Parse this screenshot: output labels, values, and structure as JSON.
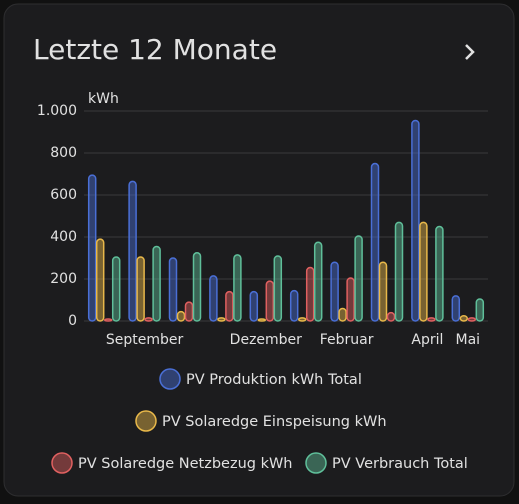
{
  "chart_data": {
    "type": "bar",
    "title": "Letzte 12 Monate",
    "y_label": "kWh",
    "categories": [
      null,
      "September",
      null,
      null,
      "Dezember",
      null,
      "Februar",
      null,
      "April",
      "Mai"
    ],
    "series": [
      {
        "name": "PV Produktion kWh Total",
        "color": "#4a6fd6",
        "values": [
          690,
          660,
          295,
          210,
          135,
          140,
          275,
          745,
          950,
          115
        ]
      },
      {
        "name": "PV Solaredge Einspeisung kWh",
        "color": "#e8b84a",
        "values": [
          385,
          300,
          40,
          10,
          5,
          10,
          55,
          275,
          465,
          20
        ]
      },
      {
        "name": "PV Solaredge Netzbezug kWh",
        "color": "#e06060",
        "values": [
          5,
          10,
          85,
          135,
          185,
          250,
          200,
          35,
          10,
          10
        ]
      },
      {
        "name": "PV Verbrauch Total",
        "color": "#5fbf9a",
        "values": [
          300,
          350,
          320,
          310,
          305,
          370,
          400,
          465,
          445,
          100
        ]
      }
    ],
    "ylim": [
      0,
      1000
    ],
    "yticks": [
      0,
      200,
      400,
      600,
      800,
      {
        "value": 1000,
        "label": "1.000"
      }
    ],
    "grid": true
  }
}
